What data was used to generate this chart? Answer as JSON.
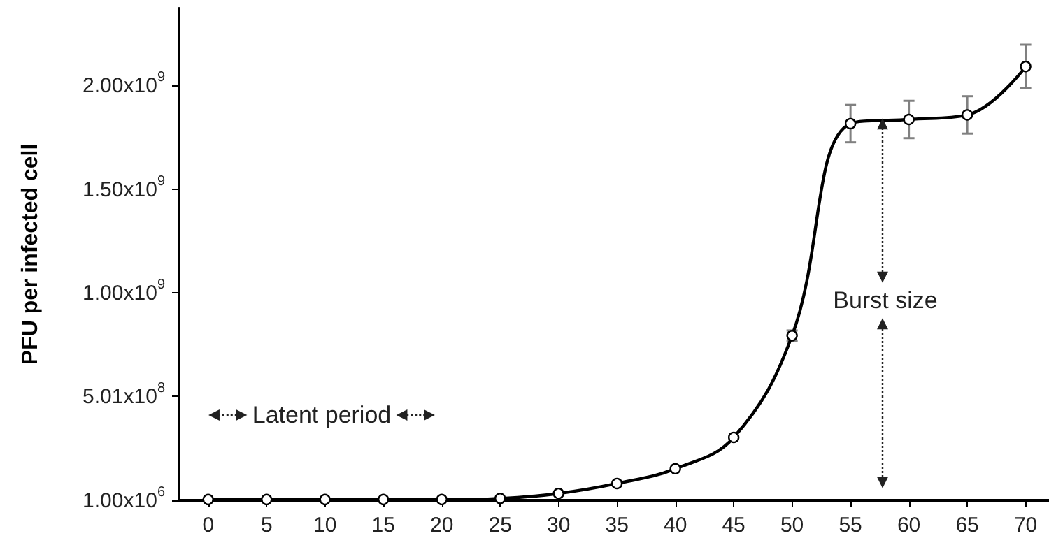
{
  "chart_data": {
    "type": "line",
    "ylabel": "PFU per infected cell",
    "x": [
      0,
      5,
      10,
      15,
      20,
      25,
      30,
      35,
      40,
      45,
      50,
      55,
      60,
      65,
      70
    ],
    "series": [
      {
        "color": "#000000",
        "values": [
          5000000,
          5000000,
          5000000,
          5000000,
          5000000,
          10000000,
          34000000,
          82000000,
          153000000,
          304000000,
          794000000,
          1815000000,
          1835000000,
          1857000000,
          2090000000
        ],
        "errors": [
          null,
          null,
          null,
          null,
          null,
          null,
          null,
          null,
          null,
          null,
          25000000,
          90000000,
          90000000,
          90000000,
          105000000
        ]
      }
    ],
    "xlim": [
      -2.5,
      72
    ],
    "xticks": [
      0,
      5,
      10,
      15,
      20,
      25,
      30,
      35,
      40,
      45,
      50,
      55,
      60,
      65,
      70
    ],
    "ylim": [
      1000000,
      2370000000
    ],
    "yticks": [
      {
        "value": 1000000,
        "label": "1.00x10$^{6}$"
      },
      {
        "value": 501000000,
        "label": "5.01x10$^{8}$"
      },
      {
        "value": 1000000000,
        "label": "1.00x10$^{9}$"
      },
      {
        "value": 1500000000,
        "label": "1.50x10$^{9}$"
      },
      {
        "value": 2000000000,
        "label": "2.00x10$^{9}$"
      }
    ],
    "annotations": [
      "Latent period",
      "Burst size"
    ],
    "grid": false,
    "marker": "circle",
    "line_style": "solid"
  }
}
